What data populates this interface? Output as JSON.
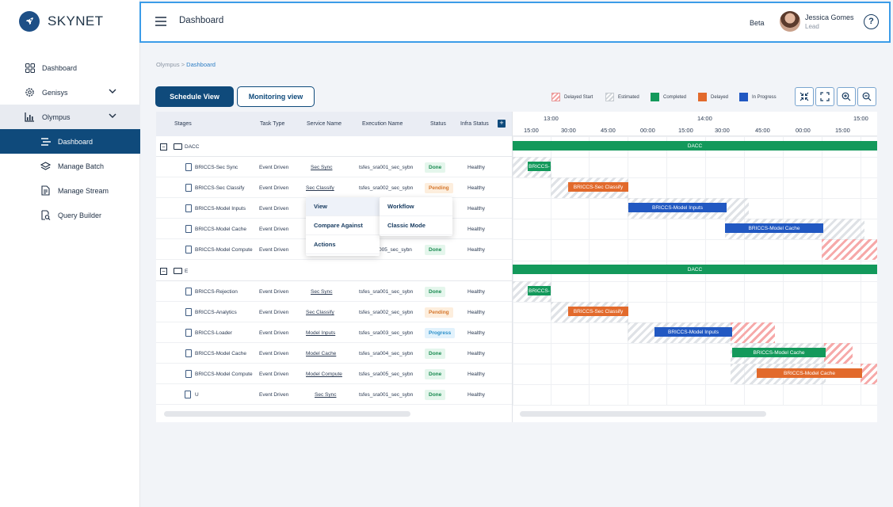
{
  "app": {
    "name": "SKYNET"
  },
  "sidebar": {
    "items": [
      {
        "label": "Dashboard",
        "icon": "grid-icon"
      },
      {
        "label": "Genisys",
        "icon": "gear-icon"
      },
      {
        "label": "Olympus",
        "icon": "bar-chart-icon"
      },
      {
        "label": "Dashboard",
        "icon": "dashboard-icon"
      },
      {
        "label": "Manage Batch",
        "icon": "layers-icon"
      },
      {
        "label": "Manage Stream",
        "icon": "document-icon"
      },
      {
        "label": "Query Builder",
        "icon": "query-icon"
      }
    ]
  },
  "header": {
    "title": "Dashboard",
    "beta": "Beta",
    "user_name": "Jessica Gomes",
    "user_role": "Lead",
    "help": "?"
  },
  "breadcrumb": {
    "root": "Olympus",
    "sep": ">",
    "current": "Dashboard"
  },
  "views": {
    "schedule": "Schedule View",
    "monitoring": "Monitoring view"
  },
  "legend": {
    "delayed_start": "Delayed Start",
    "estimated": "Estimated",
    "completed": "Completed",
    "delayed": "Delayed",
    "in_progress": "In Progress"
  },
  "colors": {
    "primary": "#0f4a7b",
    "completed": "#13995b",
    "delayed": "#e26a2c",
    "in_progress": "#2158c2",
    "focus": "#3b9ce8"
  },
  "table": {
    "headers": [
      "Stages",
      "Task Type",
      "Service Name",
      "Execution Name",
      "Status",
      "Infra Status"
    ],
    "groups": [
      {
        "name": "DACC",
        "rows": [
          {
            "stage": "BRICCS-Sec Sync",
            "task": "Event Driven",
            "service": "Sec Sync",
            "exec": "tsfes_sra001_sec_sybn",
            "status": "Done",
            "infra": "Healthy"
          },
          {
            "stage": "BRICCS-Sec Classify",
            "task": "Event Driven",
            "service": "Sec Classify",
            "exec": "tsfes_sra002_sec_sybn",
            "status": "Pending",
            "infra": "Healthy"
          },
          {
            "stage": "BRICCS-Model Inputs",
            "task": "Event Driven",
            "service": "",
            "exec": "",
            "status": "",
            "infra": "Healthy"
          },
          {
            "stage": "BRICCS-Model Cache",
            "task": "Event Driven",
            "service": "",
            "exec": "",
            "status": "",
            "infra": "Healthy"
          },
          {
            "stage": "BRICCS-Model Compute",
            "task": "Event Driven",
            "service": "",
            "exec": "005_sec_sybn",
            "status": "Done",
            "infra": "Healthy"
          }
        ]
      },
      {
        "name": "E",
        "rows": [
          {
            "stage": "BRICCS-Rejection",
            "task": "Event Driven",
            "service": "Sec Sync",
            "exec": "tsfes_sra001_sec_sybn",
            "status": "Done",
            "infra": "Healthy"
          },
          {
            "stage": "BRICCS-Analytics",
            "task": "Event Driven",
            "service": "Sec Classify",
            "exec": "tsfes_sra002_sec_sybn",
            "status": "Pending",
            "infra": "Healthy"
          },
          {
            "stage": "BRICCS-Loader",
            "task": "Event Driven",
            "service": "Model Inputs",
            "exec": "tsfes_sra003_sec_sybn",
            "status": "Progress",
            "infra": "Healthy"
          },
          {
            "stage": "BRICCS-Model Cache",
            "task": "Event Driven",
            "service": "Model Cache",
            "exec": "tsfes_sra004_sec_sybn",
            "status": "Done",
            "infra": "Healthy"
          },
          {
            "stage": "BRICCS-Model Compute",
            "task": "Event Driven",
            "service": "Model Compute",
            "exec": "tsfes_sra005_sec_sybn",
            "status": "Done",
            "infra": "Healthy"
          }
        ]
      }
    ],
    "tail_row": {
      "stage": "U",
      "task": "Event Driven",
      "service": "Sec Sync",
      "exec": "tsfes_sra001_sec_sybn",
      "status": "Done",
      "infra": "Healthy"
    }
  },
  "timeline": {
    "hours": [
      "13:00",
      "14:00",
      "15:00"
    ],
    "minutes": [
      "15:00",
      "30:00",
      "45:00",
      "00:00",
      "15:00",
      "30:00",
      "45:00",
      "00:00",
      "15:00"
    ],
    "group_bars": [
      "DACC",
      "DACC"
    ],
    "bars": [
      "BRICCS-",
      "BRICCS-Sec Classify",
      "BRICCS-Model Inputs",
      "BRICCS-Model Cache",
      "BRICCS-",
      "BRICCS-Sec Classify",
      "BRICCS-Model Inputs",
      "BRICCS-Model Cache",
      "BRICCS-Model Cache"
    ]
  },
  "context_menu": {
    "col1": [
      "View",
      "Compare Against",
      "Actions"
    ],
    "col2": [
      "Workflow",
      "Classic Mode"
    ]
  }
}
